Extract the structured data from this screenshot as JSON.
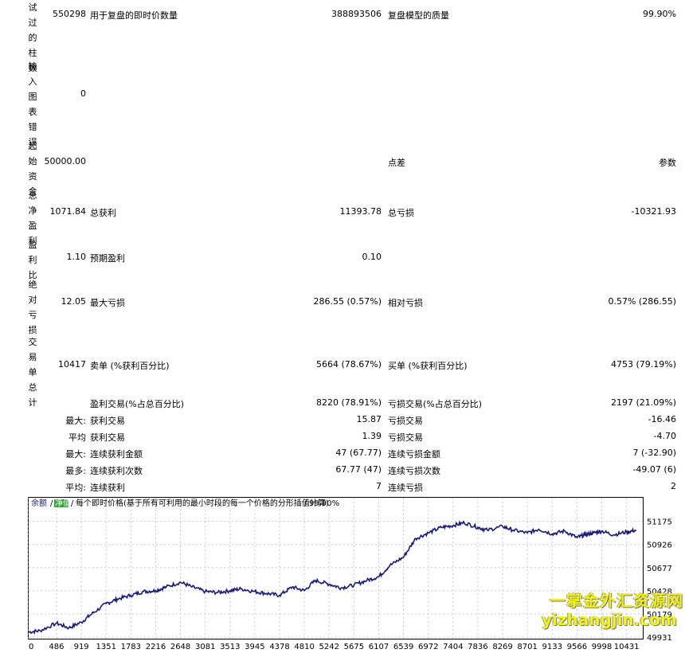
{
  "report": {
    "bars_label": "试过的柱数",
    "bars_value": "550298",
    "ticks_label": "用于复盘的即时价数量",
    "ticks_value": "388893506",
    "quality_label": "复盘模型的质量",
    "quality_value": "99.90%",
    "errors_label": "输入图表错误",
    "errors_value": "0",
    "deposit_label": "起始资金",
    "deposit_value": "50000.00",
    "spread_label": "点差",
    "params_label": "参数",
    "net_label": "总净盈利",
    "net_value": "1071.84",
    "gross_profit_label": "总获利",
    "gross_profit_value": "11393.78",
    "gross_loss_label": "总亏损",
    "gross_loss_value": "-10321.93",
    "pf_label": "盈利比",
    "pf_value": "1.10",
    "expected_label": "预期盈利",
    "expected_value": "0.10",
    "abs_dd_label": "绝对亏损",
    "abs_dd_value": "12.05",
    "max_dd_label": "最大亏损",
    "max_dd_value": "286.55 (0.57%)",
    "rel_dd_label": "相对亏损",
    "rel_dd_value": "0.57% (286.55)",
    "total_trades_label": "交易单总计",
    "total_trades_value": "10417",
    "short_label": "卖单 (%获利百分比)",
    "short_value": "5664 (78.67%)",
    "long_label": "买单 (%获利百分比)",
    "long_value": "4753 (79.19%)",
    "profit_trades_label": "盈利交易(%占总百分比)",
    "profit_trades_value": "8220 (78.91%)",
    "loss_trades_label": "亏损交易(%占总百分比)",
    "loss_trades_value": "2197 (21.09%)",
    "rows": [
      {
        "prefix": "最大:",
        "l_label": "获利交易",
        "l_value": "15.87",
        "r_label": "亏损交易",
        "r_value": "-16.46"
      },
      {
        "prefix": "平均",
        "l_label": "获利交易",
        "l_value": "1.39",
        "r_label": "亏损交易",
        "r_value": "-4.70"
      },
      {
        "prefix": "最大:",
        "l_label": "连续获利金额",
        "l_value": "47 (67.77)",
        "r_label": "连续亏损金额",
        "r_value": "7 (-32.90)"
      },
      {
        "prefix": "最多:",
        "l_label": "连续获利次数",
        "l_value": "67.77 (47)",
        "r_label": "连续亏损次数",
        "r_value": "-49.07 (6)"
      },
      {
        "prefix": "平均:",
        "l_label": "连续获利",
        "l_value": "7",
        "r_label": "连续亏损",
        "r_value": "2"
      }
    ]
  },
  "chart_caption": {
    "balance": "余额",
    "equity": "净值",
    "desc": "每个即时价格(基于所有可利用的最小时段的每一个价格的分形插值计算)",
    "quality": "99.90%"
  },
  "chart_data": {
    "type": "line",
    "x_ticks": [
      "0",
      "486",
      "919",
      "1351",
      "1783",
      "2216",
      "2648",
      "3081",
      "3513",
      "3945",
      "4378",
      "4810",
      "5242",
      "5675",
      "6107",
      "6539",
      "6972",
      "7404",
      "7836",
      "8269",
      "8701",
      "9133",
      "9566",
      "9998",
      "10431"
    ],
    "y_ticks": [
      "51175",
      "50926",
      "50677",
      "50428",
      "50179",
      "49931"
    ],
    "ylim": [
      49931,
      51300
    ],
    "xlim": [
      0,
      10700
    ],
    "series": [
      {
        "points": [
          [
            0,
            49985
          ],
          [
            200,
            50000
          ],
          [
            486,
            50080
          ],
          [
            700,
            50030
          ],
          [
            919,
            50090
          ],
          [
            1100,
            50180
          ],
          [
            1351,
            50290
          ],
          [
            1550,
            50340
          ],
          [
            1783,
            50380
          ],
          [
            2000,
            50420
          ],
          [
            2216,
            50430
          ],
          [
            2400,
            50470
          ],
          [
            2648,
            50520
          ],
          [
            2850,
            50470
          ],
          [
            3081,
            50420
          ],
          [
            3300,
            50410
          ],
          [
            3513,
            50430
          ],
          [
            3700,
            50450
          ],
          [
            3945,
            50420
          ],
          [
            4150,
            50400
          ],
          [
            4378,
            50380
          ],
          [
            4600,
            50470
          ],
          [
            4810,
            50430
          ],
          [
            5000,
            50540
          ],
          [
            5242,
            50500
          ],
          [
            5450,
            50460
          ],
          [
            5675,
            50490
          ],
          [
            5900,
            50540
          ],
          [
            6107,
            50580
          ],
          [
            6300,
            50700
          ],
          [
            6539,
            50790
          ],
          [
            6750,
            50990
          ],
          [
            6972,
            51050
          ],
          [
            7200,
            51110
          ],
          [
            7404,
            51130
          ],
          [
            7600,
            51160
          ],
          [
            7836,
            51110
          ],
          [
            8000,
            51080
          ],
          [
            8269,
            51120
          ],
          [
            8450,
            51080
          ],
          [
            8701,
            51050
          ],
          [
            8900,
            51090
          ],
          [
            9133,
            51040
          ],
          [
            9350,
            51070
          ],
          [
            9566,
            51000
          ],
          [
            9700,
            51030
          ],
          [
            9850,
            51050
          ],
          [
            9998,
            51070
          ],
          [
            10200,
            51030
          ],
          [
            10431,
            51060
          ],
          [
            10600,
            51080
          ]
        ]
      }
    ]
  },
  "watermark": {
    "line1": "一掌金外汇资源网",
    "line2": "yizhangjin.com"
  }
}
